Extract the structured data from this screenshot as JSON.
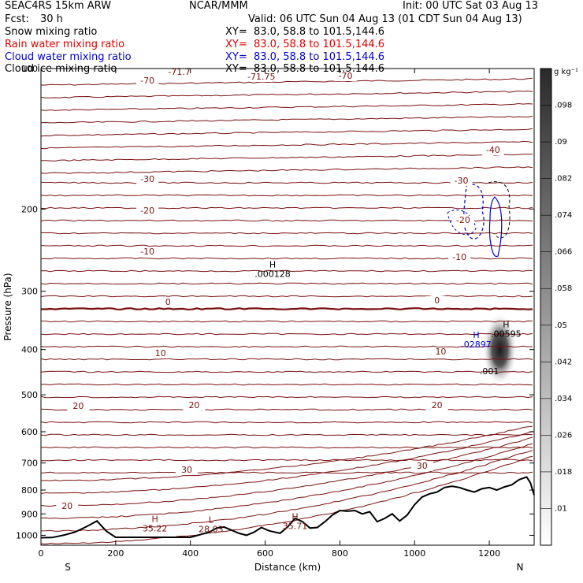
{
  "header": {
    "model": "SEAC4RS 15km ARW",
    "org": "NCAR/MMM",
    "init": "Init: 00 UTC Sat 03 Aug 13",
    "fcst_label": "Fcst:",
    "fcst_value": "30 h",
    "valid": "Valid: 06 UTC Sun 04 Aug 13 (01 CDT Sun 04 Aug 13)"
  },
  "fields": [
    {
      "name": "Snow mixing ratio",
      "xy": "XY=  83.0, 58.8 to 101.5,144.6",
      "color": "#000000"
    },
    {
      "name": "Rain water mixing ratio",
      "xy": "XY=  83.0, 58.8 to 101.5,144.6",
      "color": "#dd0000"
    },
    {
      "name": "Cloud water mixing ratio",
      "xy": "XY=  83.0, 58.8 to 101.5,144.6",
      "color": "#0000cc"
    },
    {
      "name": "Cloud ice mixing ratio",
      "xy": "XY=  83.0, 58.8 to 101.5,144.6",
      "color": "#000000"
    }
  ],
  "chart_data": {
    "type": "cross-section",
    "xlabel": "Distance (km)",
    "ylabel": "Pressure (hPa)",
    "xlim": [
      0,
      1320
    ],
    "ylim": [
      1050,
      100
    ],
    "x_ticks": [
      0,
      200,
      400,
      600,
      800,
      1000,
      1200
    ],
    "y_ticks": [
      200,
      300,
      400,
      500,
      600,
      700,
      800,
      900,
      1000
    ],
    "y_tick_labels_extra": [
      {
        "value": 100,
        "label": "100"
      }
    ],
    "end_labels": {
      "left": "S",
      "right": "N"
    },
    "colorbar": {
      "unit": "g kg⁻¹",
      "labels": [
        ".01",
        ".018",
        ".026",
        ".034",
        ".042",
        ".05",
        ".058",
        ".066",
        ".074",
        ".082",
        ".09",
        ".098"
      ]
    },
    "isotherm_color": "#7a1010",
    "terrain": {
      "x": [
        0,
        30,
        60,
        90,
        120,
        150,
        175,
        200,
        250,
        300,
        350,
        400,
        420,
        450,
        470,
        490,
        510,
        530,
        550,
        570,
        590,
        610,
        640,
        660,
        680,
        700,
        720,
        740,
        760,
        780,
        800,
        820,
        840,
        860,
        880,
        900,
        920,
        940,
        960,
        980,
        1000,
        1020,
        1040,
        1060,
        1080,
        1100,
        1120,
        1140,
        1160,
        1180,
        1200,
        1220,
        1240,
        1260,
        1280,
        1300,
        1310,
        1320
      ],
      "p": [
        1012,
        1011,
        1000,
        985,
        960,
        932,
        980,
        1010,
        1010,
        1010,
        1010,
        1010,
        1000,
        985,
        965,
        960,
        975,
        990,
        1000,
        985,
        962,
        978,
        990,
        960,
        920,
        935,
        965,
        962,
        935,
        905,
        885,
        888,
        885,
        900,
        890,
        935,
        920,
        900,
        932,
        905,
        860,
        828,
        815,
        808,
        790,
        785,
        790,
        800,
        808,
        795,
        790,
        800,
        788,
        780,
        760,
        750,
        772,
        820
      ]
    },
    "isotherms": [
      {
        "label": "-71.7",
        "x": 370
      },
      {
        "label": "-71.75",
        "x": 590
      },
      {
        "label": "-70",
        "x": 285
      },
      {
        "label": "-70",
        "x": 815
      },
      {
        "label": "-40",
        "x": 1210
      },
      {
        "label": "-30",
        "x": 285
      },
      {
        "label": "-30",
        "x": 1125
      },
      {
        "label": "-20",
        "x": 285
      },
      {
        "label": "-20",
        "x": 1130
      },
      {
        "label": "-10",
        "x": 285
      },
      {
        "label": "-10",
        "x": 1120
      },
      {
        "label": "0",
        "x": 340
      },
      {
        "label": "0",
        "x": 1060
      },
      {
        "label": "10",
        "x": 320
      },
      {
        "label": "10",
        "x": 1070
      },
      {
        "label": "20",
        "x": 100
      },
      {
        "label": "20",
        "x": 410
      },
      {
        "label": "20",
        "x": 1060
      },
      {
        "label": "20",
        "x": 70
      },
      {
        "label": "30",
        "x": 390
      },
      {
        "label": "30",
        "x": 1020
      }
    ],
    "extrema": [
      {
        "type": "H",
        "value": ".000128",
        "x": 620,
        "p": 275
      },
      {
        "type": "H",
        "value": "35.22",
        "x": 305,
        "p": 965
      },
      {
        "type": "L",
        "value": "28.03",
        "x": 455,
        "p": 970
      },
      {
        "type": "H",
        "value": "35.71",
        "x": 680,
        "p": 955
      },
      {
        "type": "H",
        "value": ".02897",
        "x": 1165,
        "p": 390
      },
      {
        "type": "H",
        "value": ".00595",
        "x": 1245,
        "p": 370
      },
      {
        "type": "",
        "value": ".001",
        "x": 1200,
        "p": 445
      }
    ]
  }
}
